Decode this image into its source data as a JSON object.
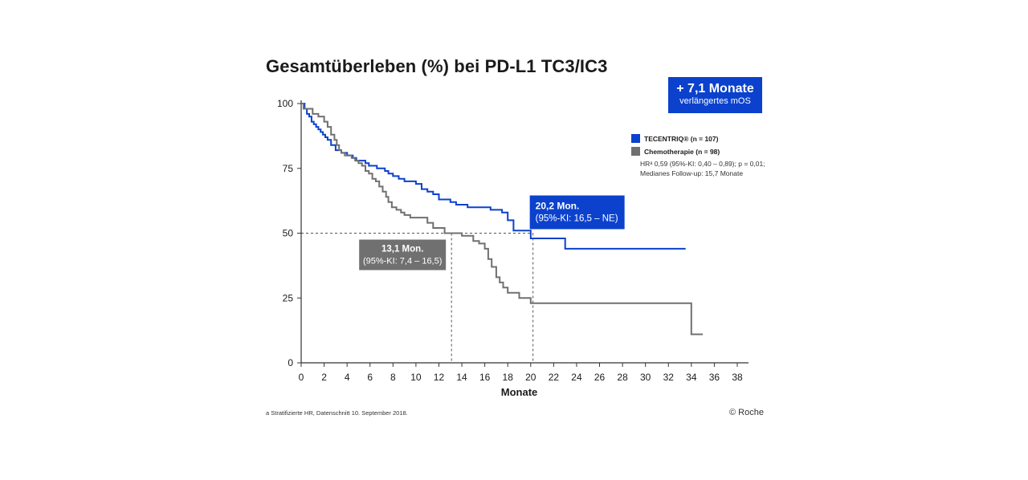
{
  "colors": {
    "tecentriq": "#0b41cd",
    "chemo": "#707070",
    "text": "#1a1a1a",
    "badge_bg": "#0b41cd"
  },
  "badge": {
    "line1": "+ 7,1 Monate",
    "line2": "verlängertes mOS"
  },
  "footnote": "a Stratifizierte HR, Datenschnitt 10. September 2018.",
  "copyright": "© Roche",
  "chart_data": {
    "type": "line",
    "title": "Gesamtüberleben (%) bei PD-L1 TC3/IC3",
    "xlabel": "Monate",
    "ylabel": "",
    "xlim": [
      0,
      38
    ],
    "ylim": [
      0,
      100
    ],
    "x_ticks": [
      0,
      2,
      4,
      6,
      8,
      10,
      12,
      14,
      16,
      18,
      20,
      22,
      24,
      26,
      28,
      30,
      32,
      34,
      36,
      38
    ],
    "y_ticks": [
      0,
      25,
      50,
      75,
      100
    ],
    "grid": false,
    "legend_position": "right",
    "legend_notes": [
      "HRᵃ 0,59 (95%-KI: 0,40 – 0,89); p = 0,01;",
      "Medianes Follow-up: 15,7 Monate"
    ],
    "series": [
      {
        "name": "TECENTRIQ® (n = 107)",
        "color": "#0b41cd",
        "x": [
          0,
          0.3,
          0.5,
          0.7,
          0.9,
          1.1,
          1.3,
          1.5,
          1.7,
          1.9,
          2.1,
          2.3,
          2.6,
          3.0,
          3.5,
          4.0,
          4.5,
          4.8,
          5.2,
          5.6,
          5.9,
          6.2,
          6.6,
          7.0,
          7.3,
          7.6,
          8.0,
          8.5,
          9.0,
          9.3,
          10.0,
          10.5,
          11.0,
          11.5,
          12.0,
          13.0,
          13.5,
          14.5,
          15.5,
          16.5,
          17.5,
          18.0,
          18.5,
          20.0,
          23.0,
          26.0,
          33.5
        ],
        "y": [
          100,
          98,
          96,
          95,
          93,
          92,
          91,
          90,
          89,
          88,
          87,
          86,
          84,
          82,
          81,
          80,
          79,
          78,
          78,
          77,
          76,
          76,
          75,
          75,
          74,
          73,
          72,
          71,
          70,
          70,
          69,
          67,
          66,
          65,
          63,
          62,
          61,
          60,
          60,
          59,
          58,
          55,
          51,
          48,
          44,
          44,
          44
        ]
      },
      {
        "name": "Chemotherapie (n = 98)",
        "color": "#707070",
        "x": [
          0,
          0.2,
          0.5,
          1.0,
          1.5,
          2.0,
          2.3,
          2.6,
          2.9,
          3.1,
          3.3,
          3.5,
          3.8,
          4.1,
          4.4,
          4.7,
          5.0,
          5.3,
          5.6,
          5.9,
          6.2,
          6.5,
          6.8,
          7.1,
          7.4,
          7.6,
          7.9,
          8.3,
          8.7,
          9.0,
          9.5,
          10.0,
          11.0,
          11.5,
          12.5,
          13.0,
          14.0,
          15.0,
          15.5,
          16.0,
          16.3,
          16.6,
          17.0,
          17.3,
          17.6,
          18.0,
          19.0,
          20.0,
          34.0,
          35.0
        ],
        "y": [
          100,
          98,
          98,
          96,
          95,
          93,
          91,
          88,
          86,
          84,
          82,
          81,
          80,
          80,
          79,
          78,
          77,
          76,
          74,
          73,
          71,
          70,
          68,
          66,
          64,
          62,
          60,
          59,
          58,
          57,
          56,
          56,
          54,
          52,
          50,
          50,
          49,
          47,
          46,
          44,
          40,
          37,
          33,
          31,
          29,
          27,
          25,
          23,
          11,
          11
        ]
      }
    ],
    "medians": [
      {
        "series": "TECENTRIQ® (n = 107)",
        "x": 20.2,
        "y": 50,
        "label1": "20,2 Mon.",
        "label2": "(95%-KI: 16,5 – NE)",
        "color": "#0b41cd"
      },
      {
        "series": "Chemotherapie (n = 98)",
        "x": 13.1,
        "y": 50,
        "label1": "13,1 Mon.",
        "label2": "(95%-KI: 7,4 – 16,5)",
        "color": "#707070"
      }
    ]
  }
}
